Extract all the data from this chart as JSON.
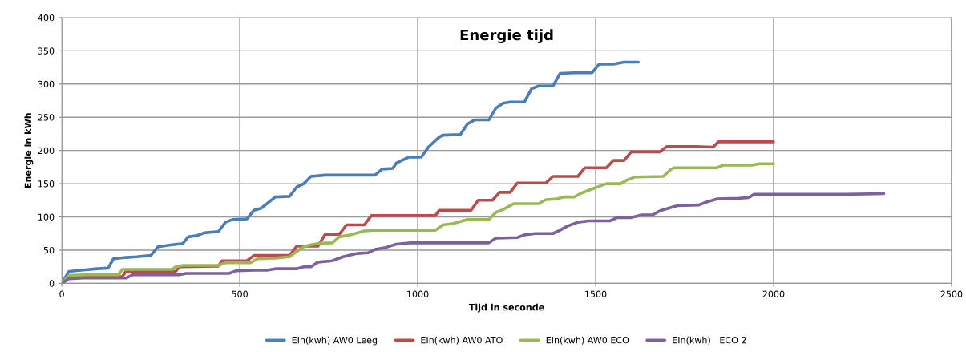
{
  "chart_data": {
    "type": "line",
    "title": "Energie tijd",
    "xlabel": "Tijd in seconde",
    "ylabel": "Energie in kWh",
    "xlim": [
      0,
      2500
    ],
    "xticks": [
      0,
      500,
      1000,
      1500,
      2000,
      2500
    ],
    "ylim": [
      0,
      400
    ],
    "yticks": [
      0,
      50,
      100,
      150,
      200,
      250,
      300,
      350,
      400
    ],
    "grid": true,
    "legend": "bottom",
    "marker": "none",
    "line_style": "solid",
    "series": [
      {
        "name": "EIn(kwh) AW0 Leeg",
        "color": "#4a7ebb",
        "x": [
          0,
          20,
          60,
          100,
          130,
          145,
          180,
          210,
          250,
          270,
          310,
          340,
          355,
          380,
          400,
          440,
          460,
          480,
          520,
          540,
          560,
          600,
          640,
          660,
          680,
          700,
          740,
          880,
          900,
          930,
          940,
          975,
          1010,
          1030,
          1060,
          1070,
          1120,
          1140,
          1160,
          1200,
          1220,
          1240,
          1260,
          1300,
          1320,
          1340,
          1380,
          1400,
          1440,
          1490,
          1510,
          1550,
          1580,
          1620
        ],
        "values": [
          0,
          18,
          20,
          22,
          23,
          37,
          39,
          40,
          42,
          55,
          58,
          60,
          70,
          72,
          76,
          78,
          92,
          96,
          97,
          110,
          113,
          130,
          131,
          145,
          150,
          161,
          163,
          163,
          172,
          173,
          181,
          190,
          190,
          205,
          220,
          223,
          224,
          240,
          246,
          246,
          264,
          271,
          273,
          273,
          293,
          297,
          297,
          316,
          317,
          317,
          330,
          330,
          333,
          333
        ]
      },
      {
        "name": "EIn(kwh) AW0 ATO",
        "color": "#be4b48",
        "x": [
          0,
          20,
          60,
          170,
          180,
          320,
          330,
          440,
          450,
          520,
          540,
          640,
          660,
          720,
          740,
          780,
          800,
          850,
          870,
          1050,
          1060,
          1150,
          1170,
          1210,
          1230,
          1260,
          1280,
          1360,
          1380,
          1450,
          1470,
          1530,
          1550,
          1580,
          1600,
          1680,
          1700,
          1780,
          1830,
          1845,
          2000
        ],
        "values": [
          0,
          9,
          10,
          10,
          18,
          18,
          25,
          26,
          34,
          34,
          42,
          42,
          56,
          56,
          74,
          74,
          88,
          88,
          102,
          102,
          110,
          110,
          125,
          125,
          137,
          137,
          151,
          151,
          161,
          161,
          174,
          174,
          185,
          185,
          198,
          198,
          206,
          206,
          205,
          213,
          213
        ]
      },
      {
        "name": "EIn(kwh) AW0 ECO",
        "color": "#98b954",
        "x": [
          0,
          20,
          80,
          160,
          170,
          310,
          320,
          340,
          440,
          460,
          530,
          550,
          600,
          640,
          660,
          680,
          700,
          720,
          760,
          780,
          810,
          850,
          880,
          1050,
          1070,
          1100,
          1140,
          1200,
          1220,
          1240,
          1270,
          1340,
          1360,
          1390,
          1410,
          1440,
          1460,
          1490,
          1510,
          1530,
          1570,
          1590,
          1610,
          1690,
          1710,
          1720,
          1840,
          1860,
          1940,
          1960,
          2000
        ],
        "values": [
          0,
          12,
          13,
          13,
          21,
          21,
          25,
          27,
          27,
          31,
          31,
          37,
          38,
          40,
          48,
          55,
          58,
          60,
          61,
          70,
          73,
          79,
          80,
          80,
          88,
          90,
          96,
          96,
          107,
          111,
          120,
          120,
          126,
          127,
          130,
          130,
          136,
          142,
          146,
          150,
          150,
          156,
          160,
          161,
          171,
          174,
          174,
          178,
          178,
          180,
          180
        ]
      },
      {
        "name": "EIn(kwh)   ECO 2",
        "color": "#7d60a0",
        "x": [
          0,
          20,
          60,
          180,
          200,
          330,
          350,
          470,
          490,
          540,
          580,
          600,
          660,
          680,
          700,
          720,
          760,
          790,
          830,
          860,
          880,
          910,
          940,
          980,
          1200,
          1220,
          1280,
          1300,
          1330,
          1380,
          1400,
          1420,
          1450,
          1480,
          1540,
          1560,
          1600,
          1630,
          1660,
          1680,
          1710,
          1730,
          1790,
          1810,
          1840,
          1900,
          1930,
          1945,
          2200,
          2310
        ],
        "values": [
          0,
          7,
          8,
          8,
          13,
          13,
          15,
          15,
          19,
          20,
          20,
          22,
          22,
          25,
          25,
          32,
          34,
          40,
          45,
          46,
          51,
          54,
          59,
          61,
          61,
          68,
          69,
          73,
          75,
          75,
          80,
          86,
          92,
          94,
          94,
          99,
          99,
          103,
          103,
          109,
          114,
          117,
          118,
          122,
          127,
          128,
          129,
          134,
          134,
          135
        ]
      }
    ]
  }
}
